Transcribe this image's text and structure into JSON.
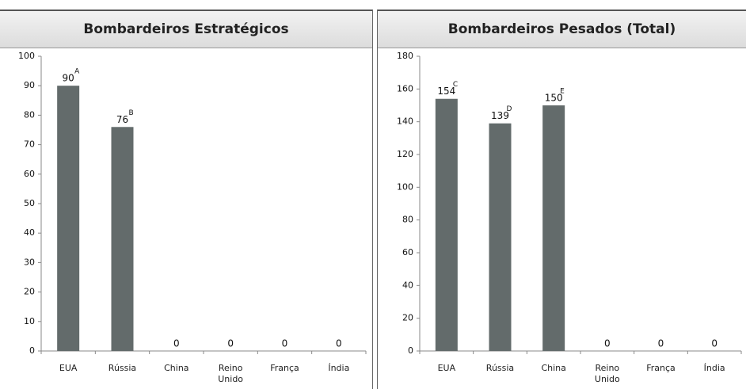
{
  "chart_data": [
    {
      "type": "bar",
      "title": "Bombardeiros Estratégicos",
      "categories": [
        "EUA",
        "Rússia",
        "China",
        "Reino Unido",
        "França",
        "Índia"
      ],
      "values": [
        90,
        76,
        0,
        0,
        0,
        0
      ],
      "annotations": [
        "A",
        "B",
        null,
        null,
        null,
        null
      ],
      "color": "#636b6b",
      "ylim": [
        0,
        100
      ],
      "yticks": [
        0,
        10,
        20,
        30,
        40,
        50,
        60,
        70,
        80,
        90,
        100
      ]
    },
    {
      "type": "bar",
      "title": "Bombardeiros Pesados (Total)",
      "categories": [
        "EUA",
        "Rússia",
        "China",
        "Reino Unido",
        "França",
        "Índia"
      ],
      "values": [
        154,
        139,
        150,
        0,
        0,
        0
      ],
      "annotations": [
        "C",
        "D",
        "E",
        null,
        null,
        null
      ],
      "color": "#636b6b",
      "ylim": [
        0,
        180
      ],
      "yticks": [
        0,
        20,
        40,
        60,
        80,
        100,
        120,
        140,
        160,
        180
      ]
    }
  ]
}
